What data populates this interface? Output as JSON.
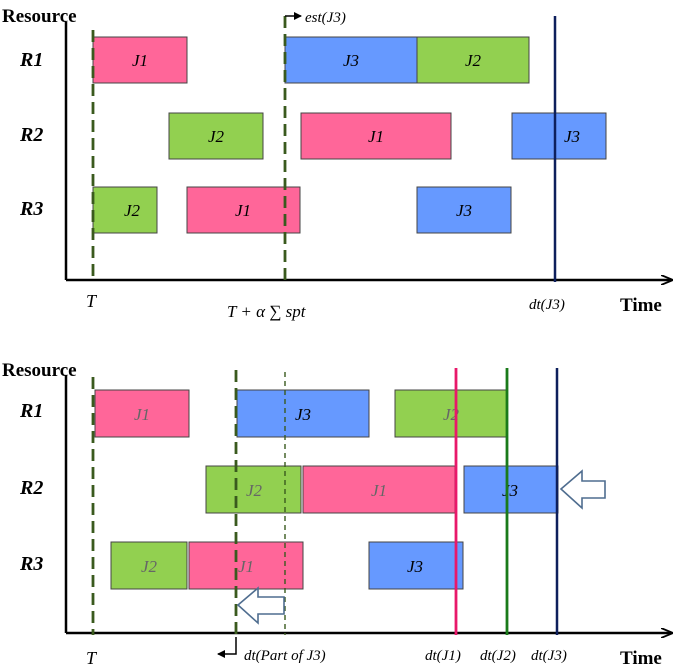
{
  "colors": {
    "pink": "#ff6699",
    "blue": "#6699ff",
    "green": "#92d050",
    "dash_green": "#3a5a1e",
    "navy": "#0d1f5c",
    "magenta_line": "#e8186a",
    "green_line": "#1a7a1a",
    "axis": "#000000"
  },
  "top": {
    "y_axis_label": "Resource",
    "x_axis_label": "Time",
    "rows": [
      "R1",
      "R2",
      "R3"
    ],
    "bars": [
      {
        "row": 0,
        "label": "J1",
        "color": "pink"
      },
      {
        "row": 0,
        "label": "J3",
        "color": "blue"
      },
      {
        "row": 0,
        "label": "J2",
        "color": "green"
      },
      {
        "row": 1,
        "label": "J2",
        "color": "green"
      },
      {
        "row": 1,
        "label": "J1",
        "color": "pink"
      },
      {
        "row": 1,
        "label": "J3",
        "color": "blue"
      },
      {
        "row": 2,
        "label": "J2",
        "color": "green"
      },
      {
        "row": 2,
        "label": "J1",
        "color": "pink"
      },
      {
        "row": 2,
        "label": "J3",
        "color": "blue"
      }
    ],
    "labels": {
      "t": "T",
      "formula": "T + α ∑ spt",
      "est": "est(J3)",
      "dt": "dt(J3)"
    }
  },
  "bottom": {
    "y_axis_label": "Resource",
    "x_axis_label": "Time",
    "rows": [
      "R1",
      "R2",
      "R3"
    ],
    "bars": [
      {
        "row": 0,
        "label": "J1",
        "color": "pink"
      },
      {
        "row": 0,
        "label": "J3",
        "color": "blue"
      },
      {
        "row": 0,
        "label": "J2",
        "color": "green"
      },
      {
        "row": 1,
        "label": "J2",
        "color": "green"
      },
      {
        "row": 1,
        "label": "J1",
        "color": "pink"
      },
      {
        "row": 1,
        "label": "J3",
        "color": "blue"
      },
      {
        "row": 2,
        "label": "J2",
        "color": "green"
      },
      {
        "row": 2,
        "label": "J1",
        "color": "pink"
      },
      {
        "row": 2,
        "label": "J3",
        "color": "blue"
      }
    ],
    "labels": {
      "t": "T",
      "dt_part": "dt(Part of J3)",
      "dt_j1": "dt(J1)",
      "dt_j2": "dt(J2)",
      "dt_j3": "dt(J3)"
    }
  }
}
